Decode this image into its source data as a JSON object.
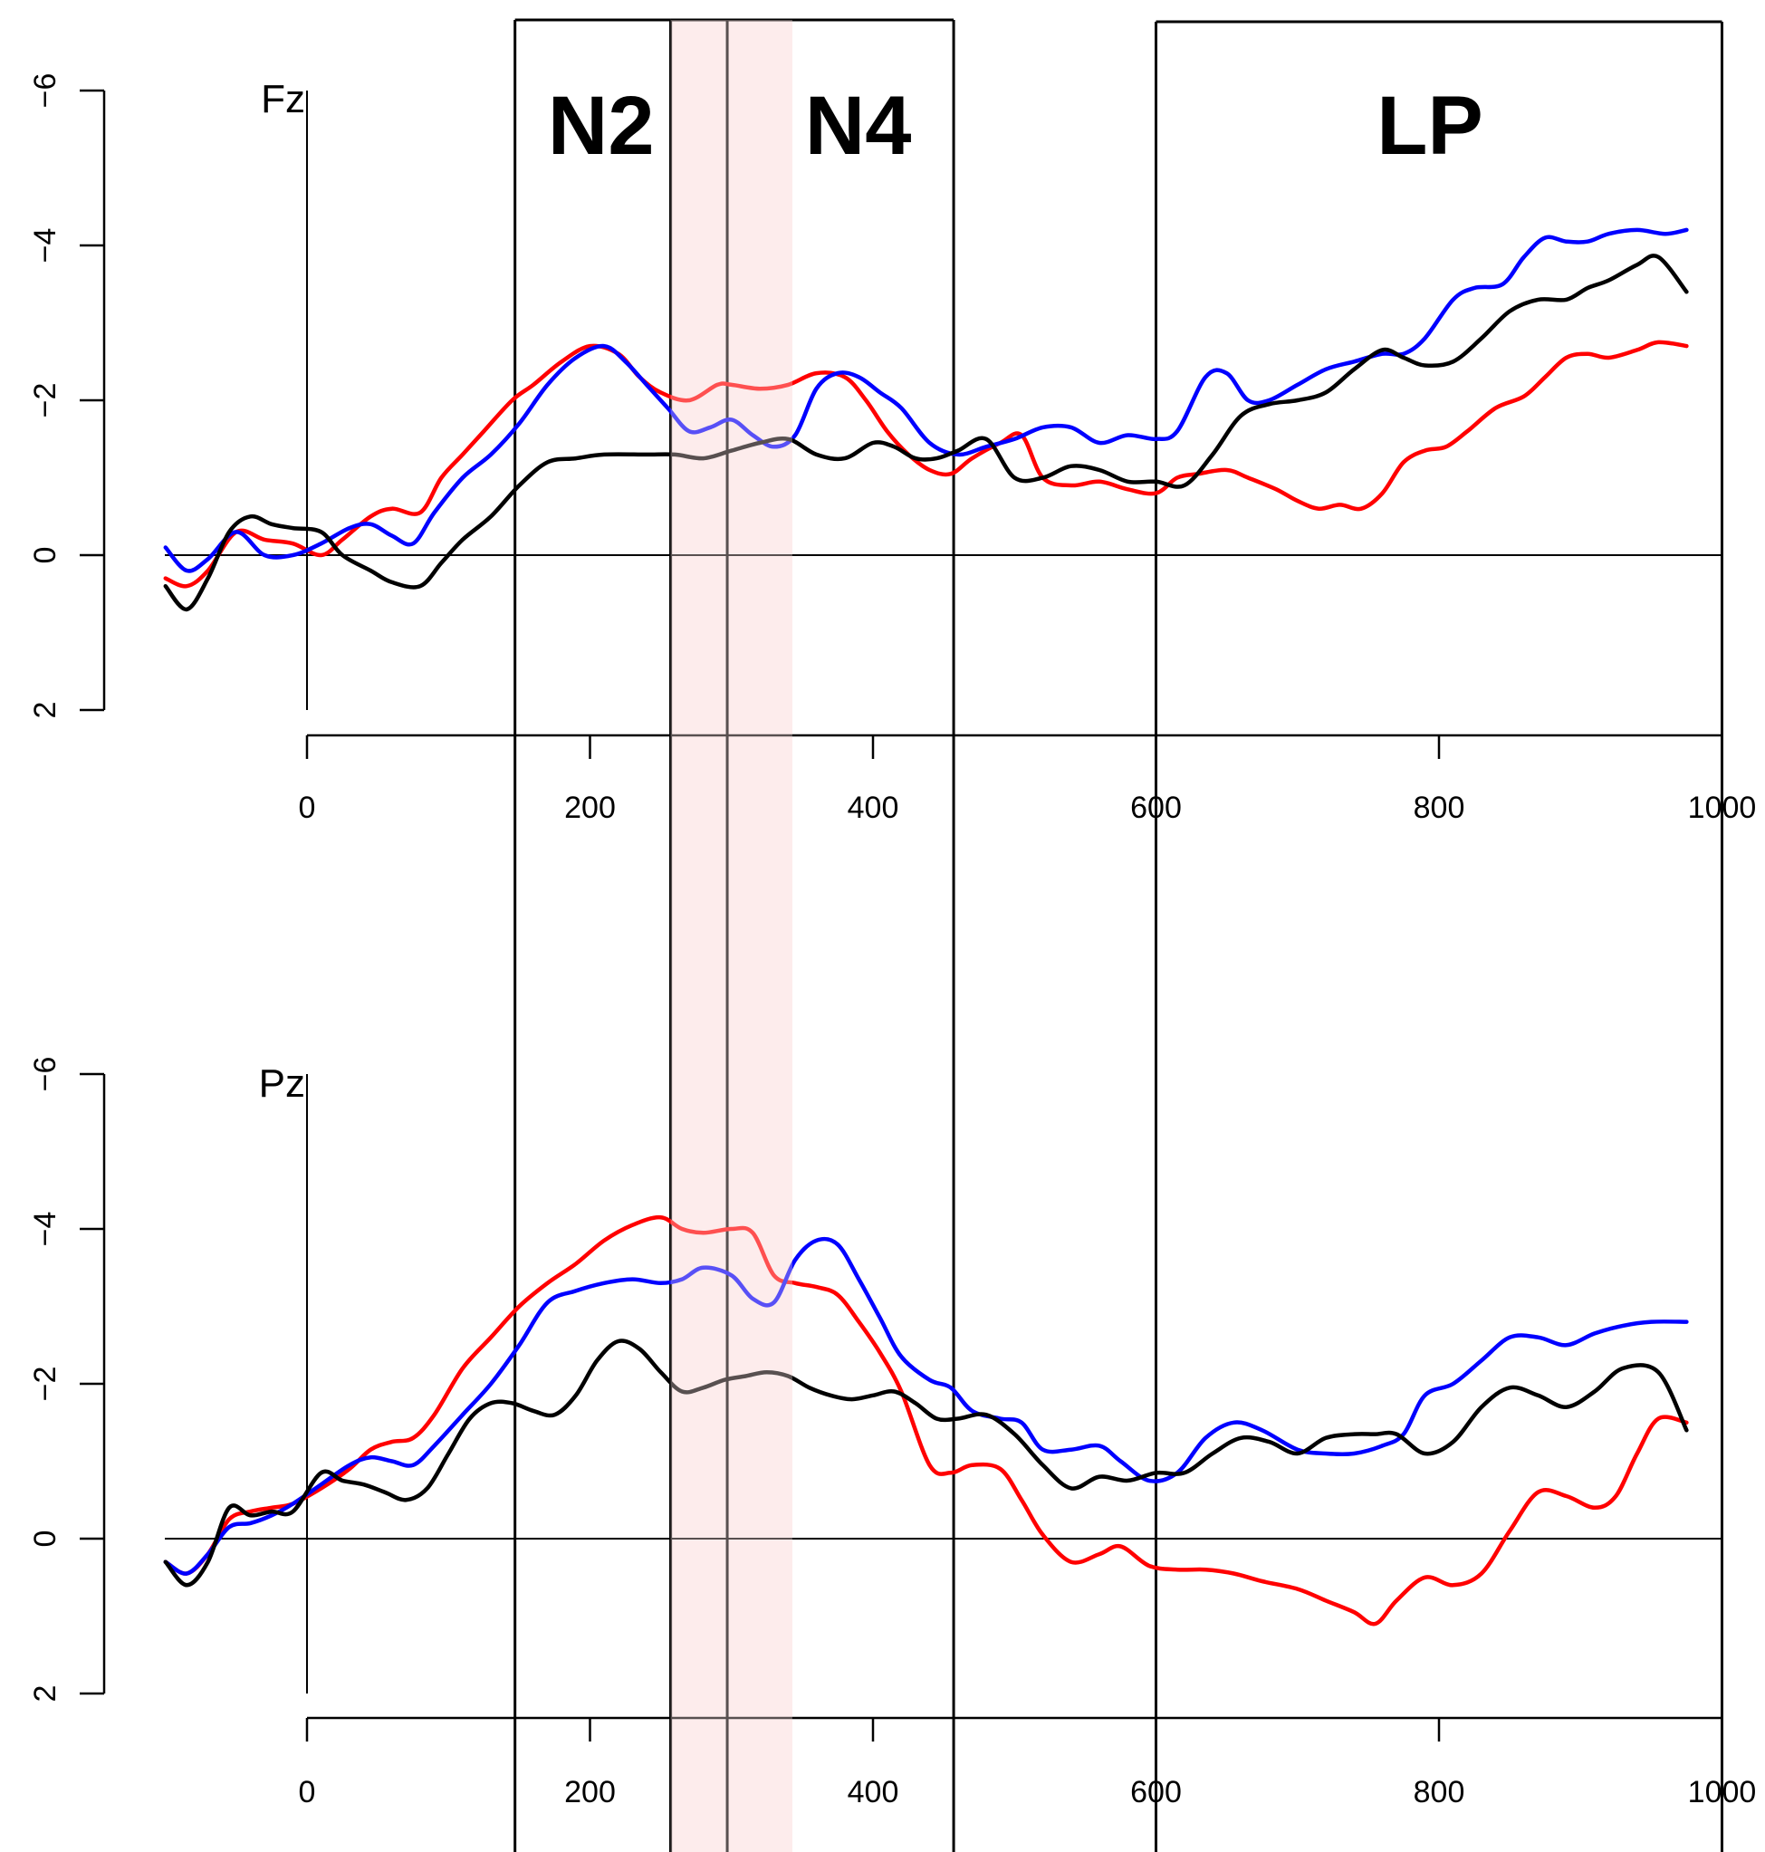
{
  "chart_data": {
    "type": "line",
    "xlim": [
      -150,
      1000
    ],
    "x_ticks": [
      0,
      200,
      400,
      600,
      800,
      1000
    ],
    "y_ticks": [
      -6,
      -4,
      -2,
      0,
      2
    ],
    "y_inverted": true,
    "grid": false,
    "colors": {
      "series_a": "#ff0000",
      "series_b": "#0000ff",
      "series_c": "#000000",
      "shade": "#fde4e4"
    },
    "windows": [
      {
        "label": "N2",
        "start": 147,
        "end": 257
      },
      {
        "label": "N4",
        "start": 257,
        "end": 457
      },
      {
        "label": "LP",
        "start": 600,
        "end": 1000
      }
    ],
    "shaded_interval": [
      257,
      343
    ],
    "marker_x": 297,
    "panels": [
      {
        "electrode": "Fz",
        "ylim": [
          2,
          -6
        ],
        "series": [
          {
            "color": "#ff0000",
            "x": [
              -100,
              -85,
              -70,
              -50,
              -30,
              -10,
              10,
              25,
              45,
              60,
              80,
              95,
              110,
              125,
              145,
              160,
              180,
              200,
              220,
              235,
              250,
              270,
              290,
              300,
              320,
              340,
              360,
              380,
              395,
              410,
              425,
              440,
              455,
              470,
              490,
              505,
              520,
              540,
              560,
              580,
              600,
              615,
              630,
              650,
              665,
              685,
              700,
              715,
              730,
              745,
              760,
              775,
              790,
              805,
              820,
              840,
              860,
              875,
              890,
              905,
              920,
              940,
              955,
              975
            ],
            "y": [
              0.3,
              0.4,
              0.2,
              -0.3,
              -0.2,
              -0.15,
              0,
              -0.2,
              -0.5,
              -0.6,
              -0.55,
              -1.0,
              -1.3,
              -1.6,
              -2.0,
              -2.2,
              -2.5,
              -2.7,
              -2.6,
              -2.3,
              -2.1,
              -2.0,
              -2.2,
              -2.2,
              -2.15,
              -2.2,
              -2.35,
              -2.3,
              -2.0,
              -1.6,
              -1.3,
              -1.1,
              -1.05,
              -1.25,
              -1.45,
              -1.55,
              -1.0,
              -0.9,
              -0.95,
              -0.85,
              -0.8,
              -1.0,
              -1.05,
              -1.1,
              -1.0,
              -0.85,
              -0.7,
              -0.6,
              -0.65,
              -0.6,
              -0.8,
              -1.2,
              -1.35,
              -1.4,
              -1.6,
              -1.9,
              -2.05,
              -2.3,
              -2.55,
              -2.6,
              -2.55,
              -2.65,
              -2.75,
              -2.7
            ]
          },
          {
            "color": "#0000ff",
            "x": [
              -100,
              -85,
              -70,
              -50,
              -30,
              -10,
              10,
              30,
              45,
              60,
              75,
              90,
              110,
              130,
              150,
              170,
              190,
              210,
              225,
              240,
              255,
              270,
              285,
              300,
              315,
              330,
              345,
              360,
              375,
              390,
              405,
              420,
              440,
              460,
              480,
              500,
              520,
              540,
              560,
              580,
              600,
              615,
              635,
              650,
              665,
              680,
              700,
              720,
              740,
              760,
              775,
              790,
              810,
              825,
              845,
              860,
              875,
              890,
              905,
              920,
              940,
              960,
              975
            ],
            "y": [
              -0.1,
              0.2,
              0.05,
              -0.3,
              0,
              0,
              -0.15,
              -0.35,
              -0.4,
              -0.25,
              -0.15,
              -0.55,
              -1.0,
              -1.3,
              -1.7,
              -2.2,
              -2.55,
              -2.7,
              -2.5,
              -2.2,
              -1.9,
              -1.6,
              -1.65,
              -1.75,
              -1.55,
              -1.4,
              -1.55,
              -2.15,
              -2.35,
              -2.3,
              -2.1,
              -1.9,
              -1.45,
              -1.3,
              -1.4,
              -1.5,
              -1.65,
              -1.65,
              -1.45,
              -1.55,
              -1.5,
              -1.6,
              -2.3,
              -2.35,
              -2.0,
              -2.0,
              -2.2,
              -2.4,
              -2.5,
              -2.6,
              -2.6,
              -2.8,
              -3.3,
              -3.45,
              -3.5,
              -3.85,
              -4.1,
              -4.05,
              -4.05,
              -4.15,
              -4.2,
              -4.15,
              -4.2
            ]
          },
          {
            "color": "#000000",
            "x": [
              -100,
              -85,
              -70,
              -55,
              -40,
              -25,
              -10,
              10,
              25,
              45,
              60,
              80,
              95,
              110,
              130,
              150,
              170,
              190,
              210,
              240,
              260,
              280,
              300,
              320,
              340,
              360,
              380,
              400,
              415,
              430,
              445,
              460,
              480,
              500,
              520,
              540,
              560,
              580,
              600,
              620,
              640,
              660,
              680,
              700,
              720,
              740,
              760,
              775,
              790,
              810,
              830,
              850,
              870,
              890,
              905,
              920,
              940,
              955,
              975
            ],
            "y": [
              0.4,
              0.7,
              0.3,
              -0.3,
              -0.5,
              -0.4,
              -0.35,
              -0.3,
              0,
              0.2,
              0.35,
              0.4,
              0.1,
              -0.2,
              -0.5,
              -0.9,
              -1.2,
              -1.25,
              -1.3,
              -1.3,
              -1.3,
              -1.25,
              -1.35,
              -1.45,
              -1.5,
              -1.3,
              -1.25,
              -1.45,
              -1.4,
              -1.25,
              -1.25,
              -1.35,
              -1.5,
              -1.0,
              -1.0,
              -1.15,
              -1.1,
              -0.95,
              -0.95,
              -0.9,
              -1.3,
              -1.8,
              -1.95,
              -2.0,
              -2.1,
              -2.4,
              -2.65,
              -2.55,
              -2.45,
              -2.5,
              -2.8,
              -3.15,
              -3.3,
              -3.3,
              -3.45,
              -3.55,
              -3.75,
              -3.85,
              -3.4
            ]
          }
        ]
      },
      {
        "electrode": "Pz",
        "ylim": [
          2,
          -6
        ],
        "series": [
          {
            "color": "#ff0000",
            "x": [
              -100,
              -85,
              -70,
              -55,
              -40,
              -25,
              -10,
              10,
              30,
              45,
              60,
              75,
              90,
              110,
              130,
              150,
              170,
              190,
              210,
              230,
              250,
              265,
              280,
              300,
              315,
              330,
              345,
              360,
              375,
              390,
              405,
              420,
              440,
              455,
              470,
              490,
              505,
              520,
              540,
              560,
              575,
              595,
              615,
              635,
              655,
              675,
              700,
              720,
              740,
              755,
              770,
              790,
              810,
              830,
              850,
              870,
              890,
              910,
              925,
              940,
              955,
              975
            ],
            "y": [
              0.3,
              0.45,
              0.2,
              -0.25,
              -0.35,
              -0.4,
              -0.45,
              -0.65,
              -0.9,
              -1.15,
              -1.25,
              -1.3,
              -1.6,
              -2.2,
              -2.6,
              -3.0,
              -3.3,
              -3.55,
              -3.85,
              -4.05,
              -4.15,
              -4.0,
              -3.95,
              -4.0,
              -3.95,
              -3.4,
              -3.3,
              -3.25,
              -3.15,
              -2.8,
              -2.4,
              -1.9,
              -0.95,
              -0.85,
              -0.95,
              -0.9,
              -0.5,
              -0.05,
              0.3,
              0.2,
              0.1,
              0.35,
              0.4,
              0.4,
              0.45,
              0.55,
              0.65,
              0.8,
              0.95,
              1.1,
              0.8,
              0.5,
              0.6,
              0.45,
              -0.1,
              -0.6,
              -0.55,
              -0.4,
              -0.55,
              -1.1,
              -1.55,
              -1.5
            ]
          },
          {
            "color": "#0000ff",
            "x": [
              -100,
              -85,
              -70,
              -55,
              -40,
              -25,
              -10,
              10,
              30,
              45,
              60,
              75,
              90,
              110,
              130,
              150,
              170,
              190,
              210,
              230,
              250,
              265,
              280,
              300,
              315,
              330,
              345,
              360,
              375,
              390,
              405,
              420,
              440,
              455,
              470,
              490,
              505,
              520,
              540,
              560,
              575,
              595,
              615,
              635,
              655,
              675,
              700,
              720,
              740,
              760,
              775,
              790,
              810,
              830,
              850,
              870,
              890,
              910,
              930,
              950,
              975
            ],
            "y": [
              0.3,
              0.45,
              0.2,
              -0.15,
              -0.2,
              -0.3,
              -0.45,
              -0.7,
              -0.95,
              -1.05,
              -1.0,
              -0.95,
              -1.2,
              -1.6,
              -2.0,
              -2.5,
              -3.05,
              -3.2,
              -3.3,
              -3.35,
              -3.3,
              -3.35,
              -3.5,
              -3.4,
              -3.1,
              -3.05,
              -3.6,
              -3.85,
              -3.8,
              -3.35,
              -2.85,
              -2.35,
              -2.05,
              -1.95,
              -1.65,
              -1.55,
              -1.5,
              -1.15,
              -1.15,
              -1.2,
              -1.0,
              -0.75,
              -0.85,
              -1.3,
              -1.5,
              -1.4,
              -1.15,
              -1.1,
              -1.1,
              -1.2,
              -1.35,
              -1.85,
              -2.0,
              -2.3,
              -2.6,
              -2.6,
              -2.5,
              -2.65,
              -2.75,
              -2.8,
              -2.8
            ]
          },
          {
            "color": "#000000",
            "x": [
              -100,
              -85,
              -70,
              -55,
              -40,
              -25,
              -10,
              10,
              25,
              40,
              55,
              70,
              85,
              100,
              115,
              130,
              145,
              160,
              175,
              190,
              205,
              220,
              235,
              250,
              265,
              280,
              295,
              310,
              325,
              340,
              355,
              370,
              385,
              400,
              415,
              430,
              445,
              460,
              480,
              500,
              520,
              540,
              560,
              580,
              600,
              620,
              640,
              660,
              680,
              700,
              720,
              740,
              755,
              770,
              790,
              810,
              830,
              850,
              870,
              890,
              910,
              930,
              955,
              975
            ],
            "y": [
              0.3,
              0.6,
              0.3,
              -0.4,
              -0.3,
              -0.35,
              -0.35,
              -0.85,
              -0.75,
              -0.7,
              -0.6,
              -0.5,
              -0.65,
              -1.1,
              -1.55,
              -1.75,
              -1.75,
              -1.65,
              -1.6,
              -1.85,
              -2.3,
              -2.55,
              -2.45,
              -2.15,
              -1.9,
              -1.95,
              -2.05,
              -2.1,
              -2.15,
              -2.1,
              -1.95,
              -1.85,
              -1.8,
              -1.85,
              -1.9,
              -1.75,
              -1.55,
              -1.55,
              -1.6,
              -1.35,
              -0.95,
              -0.65,
              -0.8,
              -0.75,
              -0.85,
              -0.85,
              -1.1,
              -1.3,
              -1.25,
              -1.1,
              -1.3,
              -1.35,
              -1.35,
              -1.35,
              -1.1,
              -1.25,
              -1.7,
              -1.95,
              -1.85,
              -1.7,
              -1.9,
              -2.2,
              -2.15,
              -1.4
            ]
          }
        ]
      }
    ]
  }
}
